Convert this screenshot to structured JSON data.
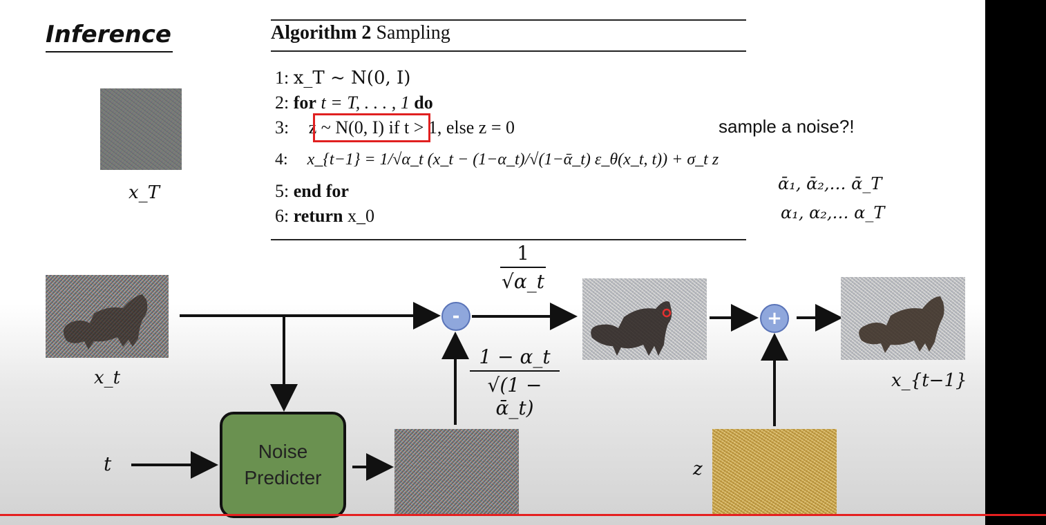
{
  "slide": {
    "title": "Inference",
    "algorithm": {
      "header_bold": "Algorithm 2",
      "header_rest": " Sampling",
      "lines": [
        {
          "num": "1:",
          "text": "x_T ~ N(0, I)"
        },
        {
          "num": "2:",
          "keyword": "for",
          "text": " t = T, . . . , 1 ",
          "keyword2": "do"
        },
        {
          "num": "3:",
          "text": "z ~ N(0, I) if t > 1, else z = 0"
        },
        {
          "num": "4:",
          "text": "x_{t−1} = 1/√α_t (x_t − (1−α_t)/√(1−ᾱ_t) ε_θ(x_t, t)) + σ_t z"
        },
        {
          "num": "5:",
          "keyword": "end for"
        },
        {
          "num": "6:",
          "keyword": "return",
          "text": " x_0"
        }
      ]
    },
    "annotation": "sample a noise?!",
    "alpha_bar_list": "ᾱ₁, ᾱ₂,… ᾱ_T",
    "alpha_list": "α₁, α₂,… α_T",
    "labels": {
      "x_T": "x_T",
      "x_t": "x_t",
      "t": "t",
      "z": "z",
      "x_t_minus_1": "x_{t−1}"
    },
    "ops": {
      "minus": "-",
      "plus": "+"
    },
    "fractions": {
      "scale": {
        "num": "1",
        "den": "√α_t"
      },
      "coef": {
        "num": "1 − α_t",
        "den": "√(1 − ᾱ_t)"
      }
    },
    "noise_predicter": {
      "line1": "Noise",
      "line2": "Predicter"
    }
  }
}
